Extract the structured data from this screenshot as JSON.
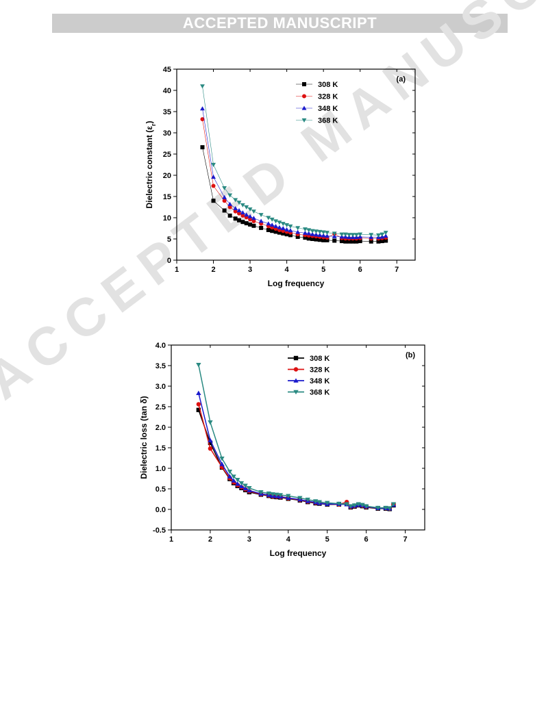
{
  "banner": "ACCEPTED MANUSCRIPT",
  "watermark": "ACCEPTED MANUSCRIPT",
  "chart_data": [
    {
      "type": "scatter",
      "panel_label": "(a)",
      "xlabel": "Log frequency",
      "ylabel_main": "Dielectric constant (ε",
      "ylabel_sub": "r",
      "ylabel_end": ")",
      "xlim": [
        1,
        7.5
      ],
      "ylim": [
        0,
        45
      ],
      "xticks": [
        1,
        2,
        3,
        4,
        5,
        6,
        7
      ],
      "yticks": [
        0,
        5,
        10,
        15,
        20,
        25,
        30,
        35,
        40,
        45
      ],
      "legend_position": "top-center",
      "series": [
        {
          "name": "308 K",
          "color": "#000000",
          "marker": "square",
          "x": [
            1.7,
            2.0,
            2.3,
            2.45,
            2.6,
            2.7,
            2.8,
            2.9,
            3.0,
            3.1,
            3.3,
            3.5,
            3.6,
            3.7,
            3.8,
            3.9,
            4.0,
            4.1,
            4.3,
            4.5,
            4.6,
            4.7,
            4.8,
            4.9,
            5.0,
            5.1,
            5.3,
            5.5,
            5.6,
            5.7,
            5.8,
            5.9,
            6.0,
            6.3,
            6.5,
            6.6,
            6.7
          ],
          "y": [
            26.6,
            14.0,
            11.7,
            10.5,
            9.8,
            9.4,
            9.0,
            8.7,
            8.4,
            8.1,
            7.6,
            7.1,
            6.9,
            6.7,
            6.5,
            6.3,
            6.1,
            5.9,
            5.5,
            5.3,
            5.1,
            5.0,
            4.9,
            4.8,
            4.7,
            4.7,
            4.6,
            4.5,
            4.4,
            4.4,
            4.4,
            4.4,
            4.5,
            4.4,
            4.4,
            4.5,
            4.6
          ]
        },
        {
          "name": "328 K",
          "color": "#dd1111",
          "marker": "circle",
          "x": [
            1.7,
            2.0,
            2.3,
            2.45,
            2.6,
            2.7,
            2.8,
            2.9,
            3.0,
            3.1,
            3.3,
            3.5,
            3.6,
            3.7,
            3.8,
            3.9,
            4.0,
            4.1,
            4.3,
            4.5,
            4.6,
            4.7,
            4.8,
            4.9,
            5.0,
            5.1,
            5.3,
            5.5,
            5.6,
            5.7,
            5.8,
            5.9,
            6.0,
            6.3,
            6.5,
            6.6,
            6.7
          ],
          "y": [
            33.2,
            17.5,
            14.0,
            12.5,
            11.5,
            11.0,
            10.5,
            10.1,
            9.6,
            9.2,
            8.6,
            8.0,
            7.7,
            7.4,
            7.1,
            6.9,
            6.7,
            6.5,
            6.1,
            5.9,
            5.8,
            5.7,
            5.6,
            5.5,
            5.4,
            5.3,
            6.2,
            5.2,
            5.1,
            5.1,
            5.1,
            5.1,
            5.2,
            5.1,
            5.1,
            5.2,
            5.3
          ]
        },
        {
          "name": "348 K",
          "color": "#1a1acc",
          "marker": "triangle-up",
          "x": [
            1.7,
            2.0,
            2.3,
            2.45,
            2.6,
            2.7,
            2.8,
            2.9,
            3.0,
            3.1,
            3.3,
            3.5,
            3.6,
            3.7,
            3.8,
            3.9,
            4.0,
            4.1,
            4.3,
            4.5,
            4.6,
            4.7,
            4.8,
            4.9,
            5.0,
            5.1,
            5.3,
            5.5,
            5.6,
            5.7,
            5.8,
            5.9,
            6.0,
            6.3,
            6.5,
            6.6,
            6.7
          ],
          "y": [
            35.7,
            19.6,
            14.8,
            13.2,
            12.2,
            11.7,
            11.2,
            10.7,
            10.3,
            9.9,
            9.2,
            8.6,
            8.3,
            8.0,
            7.7,
            7.5,
            7.2,
            7.0,
            6.6,
            6.4,
            6.3,
            6.1,
            6.0,
            5.9,
            5.8,
            5.7,
            5.6,
            5.5,
            5.5,
            5.4,
            5.4,
            5.4,
            5.5,
            5.4,
            5.4,
            5.5,
            5.7
          ]
        },
        {
          "name": "368 K",
          "color": "#2a8a82",
          "marker": "triangle-down",
          "x": [
            1.7,
            2.0,
            2.3,
            2.45,
            2.6,
            2.7,
            2.8,
            2.9,
            3.0,
            3.1,
            3.3,
            3.5,
            3.6,
            3.7,
            3.8,
            3.9,
            4.0,
            4.1,
            4.3,
            4.5,
            4.6,
            4.7,
            4.8,
            4.9,
            5.0,
            5.1,
            5.3,
            5.5,
            5.6,
            5.7,
            5.8,
            5.9,
            6.0,
            6.3,
            6.5,
            6.6,
            6.7
          ],
          "y": [
            41.0,
            22.5,
            17.0,
            15.3,
            14.2,
            13.6,
            13.0,
            12.5,
            12.0,
            11.5,
            10.7,
            10.0,
            9.6,
            9.2,
            8.9,
            8.6,
            8.3,
            8.0,
            7.6,
            7.3,
            7.1,
            6.9,
            6.8,
            6.7,
            6.6,
            6.5,
            6.3,
            6.1,
            6.1,
            6.0,
            6.0,
            6.0,
            6.1,
            6.0,
            5.9,
            6.1,
            6.5
          ]
        }
      ]
    },
    {
      "type": "line",
      "panel_label": "(b)",
      "xlabel": "Log frequency",
      "ylabel_main": "Dielectric loss (tan δ)",
      "ylabel_sub": "",
      "ylabel_end": "",
      "xlim": [
        1,
        7.5
      ],
      "ylim": [
        -0.5,
        4.0
      ],
      "xticks": [
        1,
        2,
        3,
        4,
        5,
        6,
        7
      ],
      "yticks": [
        -0.5,
        0.0,
        0.5,
        1.0,
        1.5,
        2.0,
        2.5,
        3.0,
        3.5,
        4.0
      ],
      "ytick_labels": [
        "-0.5",
        "0.0",
        "0.5",
        "1.0",
        "1.5",
        "2.0",
        "2.5",
        "3.0",
        "3.5",
        "4.0"
      ],
      "legend_position": "top-center",
      "series": [
        {
          "name": "308 K",
          "color": "#000000",
          "marker": "square",
          "x": [
            1.7,
            2.0,
            2.3,
            2.5,
            2.6,
            2.7,
            2.8,
            2.9,
            3.0,
            3.3,
            3.5,
            3.6,
            3.7,
            3.8,
            4.0,
            4.3,
            4.5,
            4.7,
            4.8,
            5.0,
            5.3,
            5.5,
            5.6,
            5.7,
            5.8,
            5.9,
            6.0,
            6.3,
            6.5,
            6.6,
            6.7
          ],
          "y": [
            2.42,
            1.62,
            1.02,
            0.74,
            0.64,
            0.57,
            0.52,
            0.47,
            0.42,
            0.36,
            0.33,
            0.31,
            0.3,
            0.29,
            0.26,
            0.22,
            0.18,
            0.15,
            0.14,
            0.12,
            0.12,
            0.13,
            0.05,
            0.07,
            0.1,
            0.08,
            0.05,
            0.02,
            0.02,
            0.01,
            0.1
          ]
        },
        {
          "name": "328 K",
          "color": "#dd1111",
          "marker": "circle",
          "x": [
            1.7,
            2.0,
            2.3,
            2.5,
            2.6,
            2.7,
            2.8,
            2.9,
            3.0,
            3.3,
            3.5,
            3.6,
            3.7,
            3.8,
            4.0,
            4.3,
            4.5,
            4.7,
            4.8,
            5.0,
            5.3,
            5.5,
            5.6,
            5.7,
            5.8,
            5.9,
            6.0,
            6.3,
            6.5,
            6.6,
            6.7
          ],
          "y": [
            2.56,
            1.48,
            1.03,
            0.76,
            0.66,
            0.59,
            0.54,
            0.49,
            0.44,
            0.37,
            0.34,
            0.32,
            0.31,
            0.3,
            0.27,
            0.23,
            0.19,
            0.16,
            0.15,
            0.13,
            0.12,
            0.18,
            0.06,
            0.08,
            0.11,
            0.09,
            0.06,
            0.03,
            0.03,
            0.02,
            0.12
          ]
        },
        {
          "name": "348 K",
          "color": "#1a1acc",
          "marker": "triangle-up",
          "x": [
            1.7,
            2.0,
            2.3,
            2.5,
            2.6,
            2.7,
            2.8,
            2.9,
            3.0,
            3.3,
            3.5,
            3.6,
            3.7,
            3.8,
            4.0,
            4.3,
            4.5,
            4.7,
            4.8,
            5.0,
            5.3,
            5.5,
            5.6,
            5.7,
            5.8,
            5.9,
            6.0,
            6.3,
            6.5,
            6.6,
            6.7
          ],
          "y": [
            2.83,
            1.68,
            1.1,
            0.8,
            0.7,
            0.62,
            0.56,
            0.51,
            0.46,
            0.38,
            0.35,
            0.33,
            0.32,
            0.31,
            0.28,
            0.24,
            0.2,
            0.17,
            0.15,
            0.13,
            0.13,
            0.12,
            0.07,
            0.09,
            0.11,
            0.1,
            0.07,
            0.03,
            0.03,
            0.02,
            0.11
          ]
        },
        {
          "name": "368 K",
          "color": "#2a8a82",
          "marker": "triangle-down",
          "x": [
            1.7,
            2.0,
            2.3,
            2.5,
            2.6,
            2.7,
            2.8,
            2.9,
            3.0,
            3.3,
            3.5,
            3.6,
            3.7,
            3.8,
            4.0,
            4.3,
            4.5,
            4.7,
            4.8,
            5.0,
            5.3,
            5.5,
            5.6,
            5.7,
            5.8,
            5.9,
            6.0,
            6.3,
            6.5,
            6.6,
            6.7
          ],
          "y": [
            3.52,
            2.12,
            1.24,
            0.92,
            0.8,
            0.72,
            0.64,
            0.58,
            0.52,
            0.42,
            0.39,
            0.37,
            0.36,
            0.35,
            0.33,
            0.28,
            0.24,
            0.2,
            0.18,
            0.16,
            0.14,
            0.13,
            0.08,
            0.1,
            0.13,
            0.11,
            0.08,
            0.04,
            0.04,
            0.03,
            0.13
          ]
        }
      ]
    }
  ]
}
